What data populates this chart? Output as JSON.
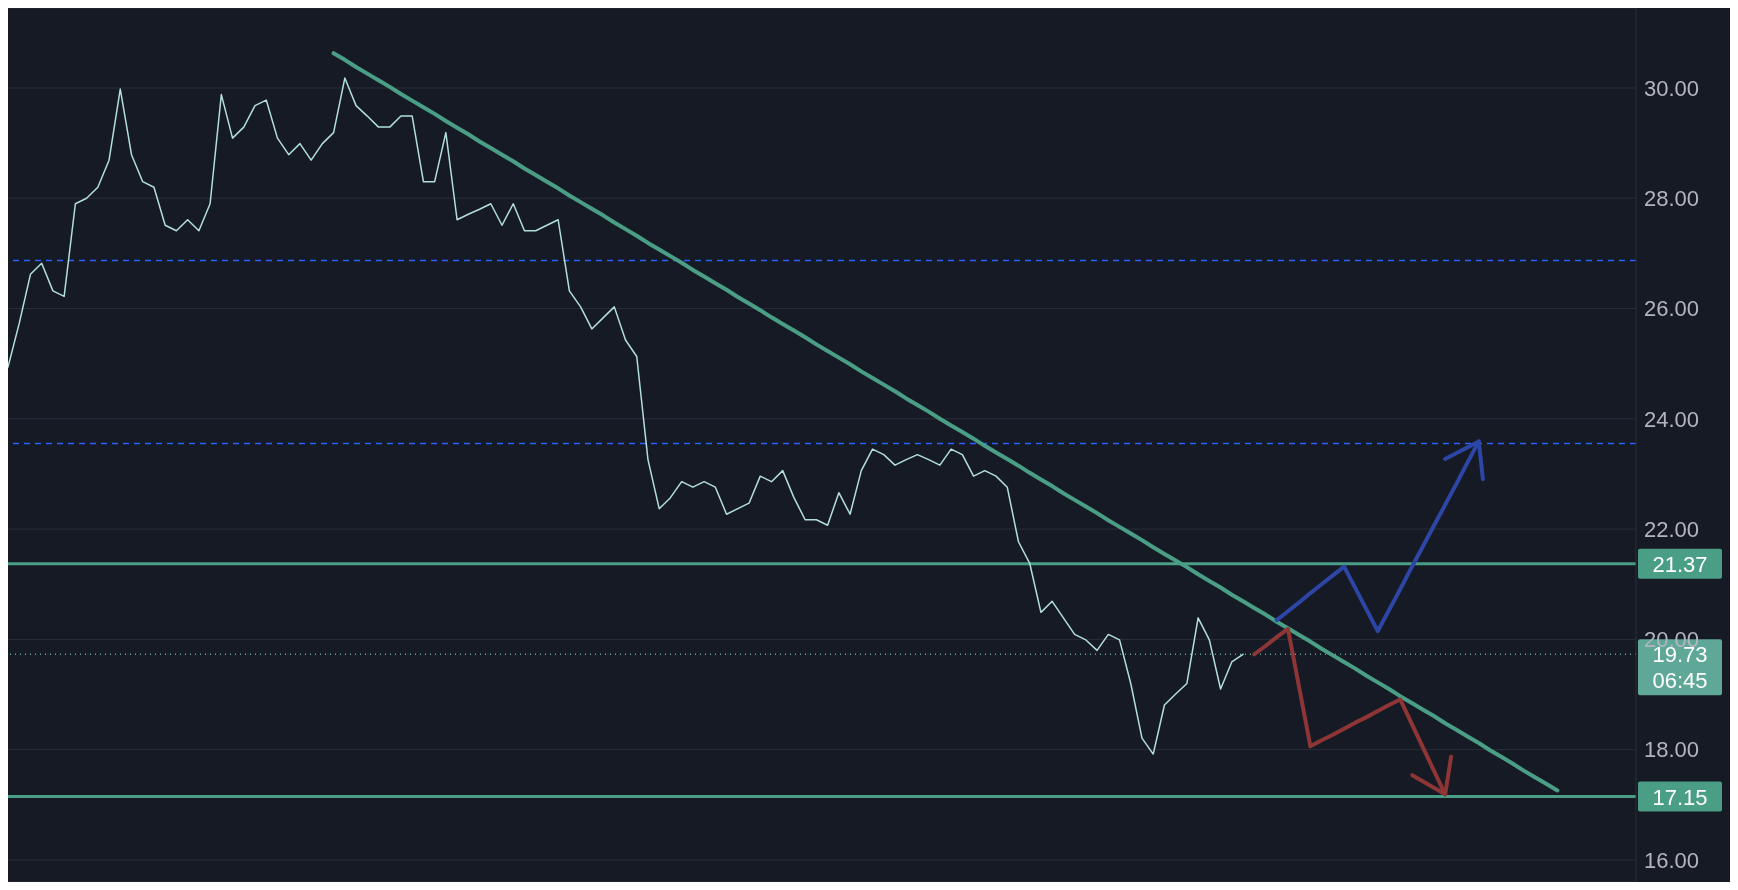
{
  "chart_data": {
    "type": "line",
    "categories": [
      null,
      null,
      null,
      null,
      null,
      null,
      null,
      null,
      null,
      null,
      null,
      null,
      null,
      null,
      null,
      null,
      null,
      null,
      null,
      null,
      null,
      null,
      null,
      null,
      null,
      null,
      null,
      null,
      null,
      null,
      null,
      null,
      null,
      null,
      null,
      null,
      null,
      null,
      null,
      null,
      null,
      null,
      null,
      null,
      null,
      null,
      null,
      null,
      null,
      null,
      null,
      null,
      null,
      null,
      null,
      null,
      null,
      null,
      null,
      null,
      null,
      null,
      null,
      null,
      null,
      null,
      null,
      null,
      null,
      null,
      null,
      null,
      null,
      null,
      null,
      null,
      null,
      null,
      null,
      null,
      null,
      null,
      null,
      null,
      null,
      null,
      null,
      null,
      null,
      null,
      null,
      null,
      null,
      null,
      null,
      null,
      null,
      null,
      null,
      null,
      null,
      null,
      null,
      null,
      null,
      null,
      null,
      null,
      null,
      null,
      null,
      null,
      null,
      null,
      null,
      null,
      null,
      null,
      null,
      null,
      null,
      null,
      null,
      null,
      null,
      null,
      null,
      null,
      null,
      null,
      null,
      null,
      null,
      null,
      null,
      null,
      null,
      null,
      null,
      null,
      null,
      null,
      null,
      null,
      null,
      null
    ],
    "series": [
      {
        "color": "#b2dfdb",
        "values": [
          24.94,
          25.73,
          26.62,
          26.82,
          26.32,
          26.22,
          27.9,
          28.0,
          28.2,
          28.69,
          29.98,
          28.79,
          28.3,
          28.2,
          27.51,
          27.41,
          27.61,
          27.41,
          27.9,
          29.88,
          29.09,
          29.29,
          29.68,
          29.78,
          29.09,
          28.79,
          28.99,
          28.69,
          28.99,
          29.19,
          30.18,
          29.68,
          29.49,
          29.29,
          29.29,
          29.49,
          29.49,
          28.3,
          28.3,
          29.19,
          27.61,
          27.71,
          27.8,
          27.9,
          27.51,
          27.9,
          27.41,
          27.41,
          27.51,
          27.61,
          26.32,
          26.03,
          25.63,
          25.83,
          26.03,
          25.43,
          25.13,
          23.26,
          22.37,
          22.57,
          22.86,
          22.76,
          22.86,
          22.76,
          22.27,
          22.37,
          22.47,
          22.96,
          22.86,
          23.06,
          22.57,
          22.17,
          22.17,
          22.07,
          22.66,
          22.27,
          23.06,
          23.45,
          23.35,
          23.16,
          23.26,
          23.35,
          23.26,
          23.16,
          23.45,
          23.35,
          22.96,
          23.06,
          22.96,
          22.76,
          21.77,
          21.38,
          20.49,
          20.69,
          20.39,
          20.09,
          19.99,
          19.8,
          20.09,
          19.99,
          19.2,
          18.21,
          17.92,
          18.81,
          19.01,
          19.2,
          20.39,
          19.99,
          19.1,
          19.59,
          19.73,
          null,
          null,
          null,
          null,
          null,
          null,
          null,
          null,
          null,
          null,
          null,
          null,
          null,
          null,
          null,
          null,
          null,
          null,
          null,
          null,
          null,
          null,
          null,
          null,
          null,
          null,
          null,
          null,
          null,
          null,
          null,
          null,
          null,
          null,
          null
        ]
      },
      {
        "type": "line",
        "color": "#4a9e85",
        "values": [
          null,
          null,
          null,
          null,
          null,
          null,
          null,
          null,
          null,
          null,
          null,
          null,
          null,
          null,
          null,
          null,
          null,
          null,
          null,
          null,
          null,
          null,
          null,
          null,
          null,
          null,
          null,
          null,
          null,
          30.63,
          30.51,
          30.38,
          30.26,
          30.14,
          30.02,
          29.89,
          29.77,
          29.65,
          29.53,
          29.4,
          29.28,
          29.16,
          29.03,
          28.91,
          28.79,
          28.67,
          28.54,
          28.42,
          28.3,
          28.18,
          28.05,
          27.93,
          27.81,
          27.69,
          27.56,
          27.44,
          27.32,
          27.19,
          27.07,
          26.95,
          26.83,
          26.7,
          26.58,
          26.46,
          26.34,
          26.21,
          26.09,
          25.97,
          25.84,
          25.72,
          25.6,
          25.48,
          25.35,
          25.23,
          25.11,
          24.99,
          24.86,
          24.74,
          24.62,
          24.5,
          24.37,
          24.25,
          24.13,
          24.0,
          23.88,
          23.76,
          23.64,
          23.51,
          23.39,
          23.27,
          23.15,
          23.02,
          22.9,
          22.78,
          22.65,
          22.53,
          22.41,
          22.29,
          22.16,
          22.04,
          21.92,
          21.8,
          21.67,
          21.55,
          21.43,
          21.31,
          21.18,
          21.06,
          20.94,
          20.81,
          20.69,
          20.57,
          20.45,
          20.32,
          20.2,
          20.08,
          19.96,
          19.83,
          19.71,
          19.59,
          19.47,
          19.34,
          19.22,
          19.1,
          18.97,
          18.85,
          18.73,
          18.61,
          18.48,
          18.36,
          18.24,
          18.12,
          17.99,
          17.87,
          17.75,
          17.62,
          17.5,
          17.38,
          17.26,
          null,
          null,
          null,
          null,
          null,
          null,
          null
        ]
      },
      {
        "type": "line",
        "color": "#2d46a6",
        "values": [
          null,
          null,
          null,
          null,
          null,
          null,
          null,
          null,
          null,
          null,
          null,
          null,
          null,
          null,
          null,
          null,
          null,
          null,
          null,
          null,
          null,
          null,
          null,
          null,
          null,
          null,
          null,
          null,
          null,
          null,
          null,
          null,
          null,
          null,
          null,
          null,
          null,
          null,
          null,
          null,
          null,
          null,
          null,
          null,
          null,
          null,
          null,
          null,
          null,
          null,
          null,
          null,
          null,
          null,
          null,
          null,
          null,
          null,
          null,
          null,
          null,
          null,
          null,
          null,
          null,
          null,
          null,
          null,
          null,
          null,
          null,
          null,
          null,
          null,
          null,
          null,
          null,
          null,
          null,
          null,
          null,
          null,
          null,
          null,
          null,
          null,
          null,
          null,
          null,
          null,
          null,
          null,
          null,
          null,
          null,
          null,
          null,
          null,
          null,
          null,
          null,
          null,
          null,
          null,
          null,
          null,
          null,
          null,
          null,
          null,
          null,
          null,
          null,
          20.35,
          20.51,
          20.67,
          20.84,
          21.0,
          21.16,
          21.32,
          20.93,
          20.54,
          20.15,
          20.53,
          20.91,
          21.3,
          21.68,
          22.06,
          22.44,
          22.82,
          23.21,
          23.59,
          null,
          null,
          null,
          null,
          null,
          null,
          null,
          null,
          null,
          null,
          null,
          null,
          null,
          null
        ]
      },
      {
        "type": "line",
        "color": "#8e3535",
        "values": [
          null,
          null,
          null,
          null,
          null,
          null,
          null,
          null,
          null,
          null,
          null,
          null,
          null,
          null,
          null,
          null,
          null,
          null,
          null,
          null,
          null,
          null,
          null,
          null,
          null,
          null,
          null,
          null,
          null,
          null,
          null,
          null,
          null,
          null,
          null,
          null,
          null,
          null,
          null,
          null,
          null,
          null,
          null,
          null,
          null,
          null,
          null,
          null,
          null,
          null,
          null,
          null,
          null,
          null,
          null,
          null,
          null,
          null,
          null,
          null,
          null,
          null,
          null,
          null,
          null,
          null,
          null,
          null,
          null,
          null,
          null,
          null,
          null,
          null,
          null,
          null,
          null,
          null,
          null,
          null,
          null,
          null,
          null,
          null,
          null,
          null,
          null,
          null,
          null,
          null,
          null,
          null,
          null,
          null,
          null,
          null,
          null,
          null,
          null,
          null,
          null,
          null,
          null,
          null,
          null,
          null,
          null,
          null,
          null,
          null,
          null,
          19.73,
          19.88,
          20.04,
          20.19,
          19.13,
          18.06,
          18.17,
          18.27,
          18.38,
          18.49,
          18.59,
          18.7,
          18.81,
          18.91,
          18.48,
          18.05,
          17.62,
          17.19,
          null,
          null,
          null,
          null,
          null,
          null,
          null,
          null,
          null,
          null,
          null,
          null,
          null,
          null,
          null,
          null,
          null
        ]
      }
    ],
    "ylim": [
      15.6,
      31.45
    ],
    "yticks": [
      {
        "value": 16,
        "label": "16.00"
      },
      {
        "value": 18,
        "label": "18.00"
      },
      {
        "value": 20,
        "label": "20.00"
      },
      {
        "value": 22,
        "label": "22.00"
      },
      {
        "value": 24,
        "label": "24.00"
      },
      {
        "value": 26,
        "label": "26.00"
      },
      {
        "value": 28,
        "label": "28.00"
      },
      {
        "value": 30,
        "label": "30.00"
      }
    ],
    "grid": "y",
    "tick_labels": "y",
    "ref_lines": [
      {
        "axis": "y",
        "value": 26.87,
        "label": null,
        "color": "#2962ff",
        "line_style": "dashed"
      },
      {
        "axis": "y",
        "value": 23.55,
        "label": null,
        "color": "#2962ff",
        "line_style": "dashed"
      },
      {
        "axis": "y",
        "value": 21.37,
        "label": "21.37",
        "color": "#4a9e85",
        "line_style": "solid"
      },
      {
        "axis": "y",
        "value": 17.15,
        "label": "17.15",
        "color": "#4a9e85",
        "line_style": "solid"
      },
      {
        "axis": "y",
        "value": 19.73,
        "label": "19.73",
        "color": "#5fa898",
        "line_style": "dotted"
      }
    ],
    "annotations": [
      "06:45"
    ]
  }
}
